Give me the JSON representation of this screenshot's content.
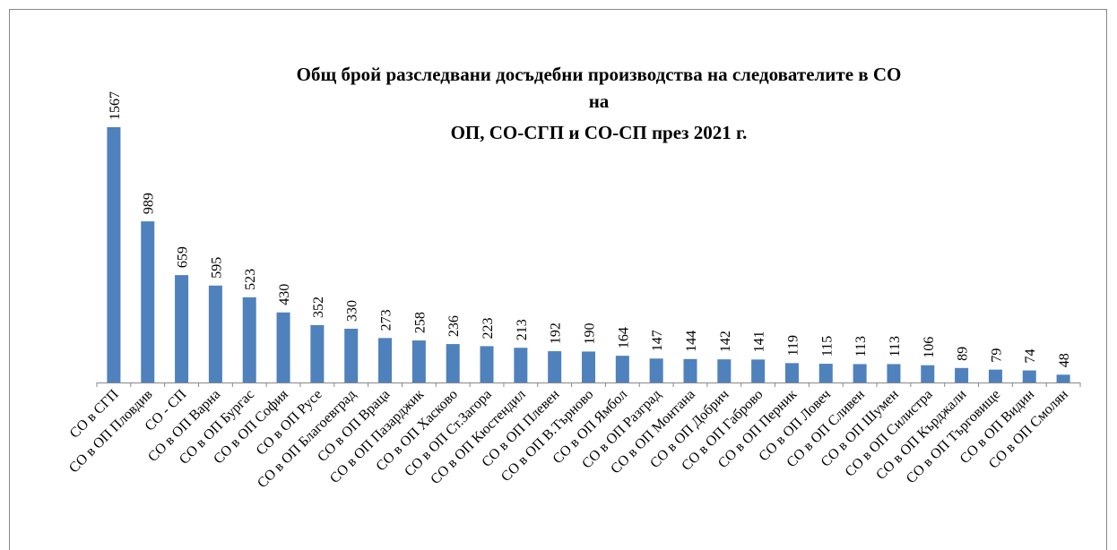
{
  "chart_data": {
    "type": "bar",
    "title": [
      "Общ брой разследвани досъдебни производства на следователите в СО",
      "на",
      "ОП, СО-СГП и СО-СП през 2021 г."
    ],
    "categories": [
      "СО в СГП",
      "СО в ОП Пловдив",
      "СО - СП",
      "СО в ОП Варна",
      "СО в ОП Бургас",
      "СО в ОП София",
      "СО в ОП Русе",
      "СО в ОП Благоевград",
      "СО в ОП Враца",
      "СО в ОП Пазарджик",
      "СО в ОП Хасково",
      "СО в ОП Ст.Загора",
      "СО в ОП Кюстендил",
      "СО в ОП Плевен",
      "СО в ОП В.Търново",
      "СО в ОП Ямбол",
      "СО в ОП Разград",
      "СО в ОП Монтана",
      "СО в ОП Добрич",
      "СО в ОП Габрово",
      "СО в ОП Перник",
      "СО в ОП Ловеч",
      "СО в ОП Сливен",
      "СО в ОП Шумен",
      "СО в ОП Силистра",
      "СО в ОП Кърджали",
      "СО в ОП Търговище",
      "СО в ОП Видин",
      "СО в ОП Смолян"
    ],
    "values": [
      1567,
      989,
      659,
      595,
      523,
      430,
      352,
      330,
      273,
      258,
      236,
      223,
      213,
      192,
      190,
      164,
      147,
      144,
      142,
      141,
      119,
      115,
      113,
      113,
      106,
      89,
      79,
      74,
      48
    ],
    "color": "#4f81bd"
  }
}
